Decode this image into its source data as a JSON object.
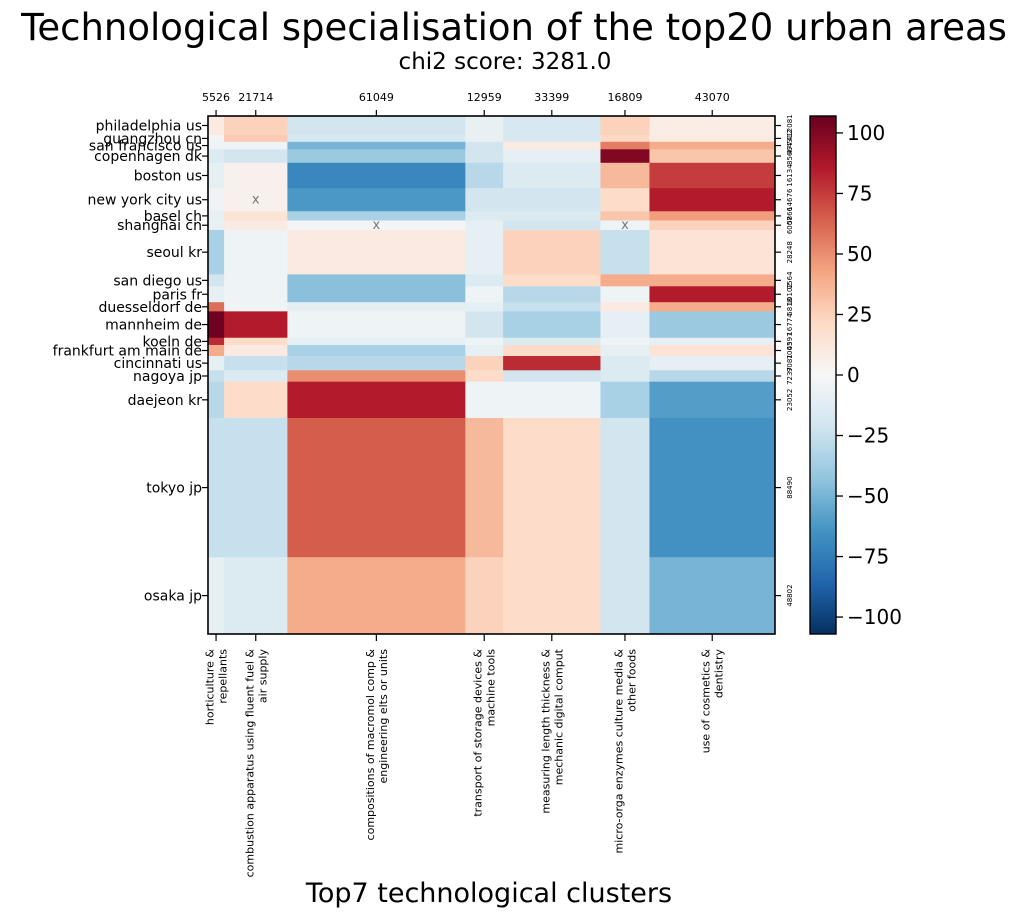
{
  "chart_data": {
    "type": "heatmap",
    "title": "Technological specialisation of the top20 urban areas",
    "subtitle": "chi2 score: 3281.0",
    "xlabel": "Top7 technological clusters",
    "columns": [
      {
        "label_lines": [
          "horticulture &",
          "repellants"
        ],
        "total": "5526"
      },
      {
        "label_lines": [
          "combustion apparatus using fluent fuel &",
          "air supply"
        ],
        "total": "21714"
      },
      {
        "label_lines": [
          "compositions of macromol comp &",
          "engineering elts or units"
        ],
        "total": "61049"
      },
      {
        "label_lines": [
          "transport of storage devices &",
          "machine tools"
        ],
        "total": "12959"
      },
      {
        "label_lines": [
          "measuring length thickness &",
          "mechanic digital comput"
        ],
        "total": "33399"
      },
      {
        "label_lines": [
          "micro-orga enzymes culture media &",
          "other foods"
        ],
        "total": "16809"
      },
      {
        "label_lines": [
          "use of cosmetics &",
          "dentistry"
        ],
        "total": "43070"
      }
    ],
    "rows": [
      {
        "label": "philadelphia us",
        "total": "12081",
        "values": [
          10,
          25,
          -20,
          -8,
          -18,
          25,
          8
        ]
      },
      {
        "label": "guangzhou cn",
        "total": "4312",
        "values": [
          -3,
          28,
          -18,
          -8,
          -18,
          22,
          10
        ]
      },
      {
        "label": "san francisco us",
        "total": "4774",
        "values": [
          -5,
          -5,
          -50,
          -20,
          10,
          55,
          40
        ]
      },
      {
        "label": "copenhagen dk",
        "total": "8566",
        "values": [
          -15,
          -20,
          -40,
          -20,
          -10,
          100,
          30
        ]
      },
      {
        "label": "boston us",
        "total": "16134",
        "values": [
          -10,
          5,
          -70,
          -30,
          -15,
          35,
          75
        ]
      },
      {
        "label": "new york city us",
        "total": "14676",
        "values": [
          -5,
          5,
          -62,
          -20,
          -20,
          20,
          85
        ]
      },
      {
        "label": "basel ch",
        "total": "5866",
        "values": [
          -10,
          15,
          -35,
          -15,
          -15,
          30,
          45
        ]
      },
      {
        "label": "shanghai cn",
        "total": "6007",
        "values": [
          -8,
          10,
          -3,
          -10,
          -20,
          -5,
          25
        ]
      },
      {
        "label": "seoul kr",
        "total": "28248",
        "values": [
          -35,
          -5,
          10,
          -10,
          25,
          -25,
          15
        ]
      },
      {
        "label": "san diego us",
        "total": "7564",
        "values": [
          -20,
          -5,
          -45,
          -15,
          20,
          40,
          40
        ]
      },
      {
        "label": "paris fr",
        "total": "10102",
        "values": [
          -10,
          -5,
          -45,
          -5,
          -30,
          -5,
          85
        ]
      },
      {
        "label": "duesseldorf de",
        "total": "5818",
        "values": [
          60,
          -5,
          -10,
          -10,
          -25,
          10,
          40
        ]
      },
      {
        "label": "mannheim de",
        "total": "16774",
        "values": [
          105,
          85,
          -5,
          -20,
          -35,
          -10,
          -40
        ]
      },
      {
        "label": "koeln de",
        "total": "4597",
        "values": [
          80,
          20,
          -10,
          -5,
          -15,
          -5,
          -10
        ]
      },
      {
        "label": "frankfurt am main de",
        "total": "7003",
        "values": [
          40,
          10,
          -35,
          -10,
          20,
          -10,
          15
        ]
      },
      {
        "label": "cincinnati us",
        "total": "9081",
        "values": [
          -10,
          -25,
          -30,
          25,
          80,
          -15,
          -10
        ]
      },
      {
        "label": "nagoya jp",
        "total": "7237",
        "values": [
          -25,
          -15,
          50,
          20,
          -20,
          -15,
          -30
        ]
      },
      {
        "label": "daejeon kr",
        "total": "23052",
        "values": [
          -30,
          20,
          85,
          -5,
          -5,
          -35,
          -60
        ]
      },
      {
        "label": "tokyo jp",
        "total": "88490",
        "values": [
          -25,
          -25,
          65,
          35,
          20,
          -20,
          -65
        ]
      },
      {
        "label": "osaka jp",
        "total": "48802",
        "values": [
          -10,
          -15,
          40,
          25,
          20,
          -20,
          -50
        ]
      }
    ],
    "markers": [
      {
        "row": "new york city us",
        "column": 1,
        "symbol": "x"
      },
      {
        "row": "shanghai cn",
        "column": 2,
        "symbol": "x"
      },
      {
        "row": "shanghai cn",
        "column": 5,
        "symbol": "x"
      }
    ],
    "colorbar": {
      "range": [
        -107,
        107
      ],
      "ticks": [
        -100,
        -75,
        -50,
        -25,
        0,
        25,
        50,
        75,
        100
      ],
      "tick_labels": [
        "−100",
        "−75",
        "−50",
        "−25",
        "0",
        "25",
        "50",
        "75",
        "100"
      ],
      "colormap": "RdBu_r",
      "colors": [
        "#053061",
        "#2166ac",
        "#4393c3",
        "#92c5de",
        "#d1e5f0",
        "#f7f7f7",
        "#fddbc7",
        "#f4a582",
        "#d6604d",
        "#b2182b",
        "#67001f"
      ]
    }
  }
}
